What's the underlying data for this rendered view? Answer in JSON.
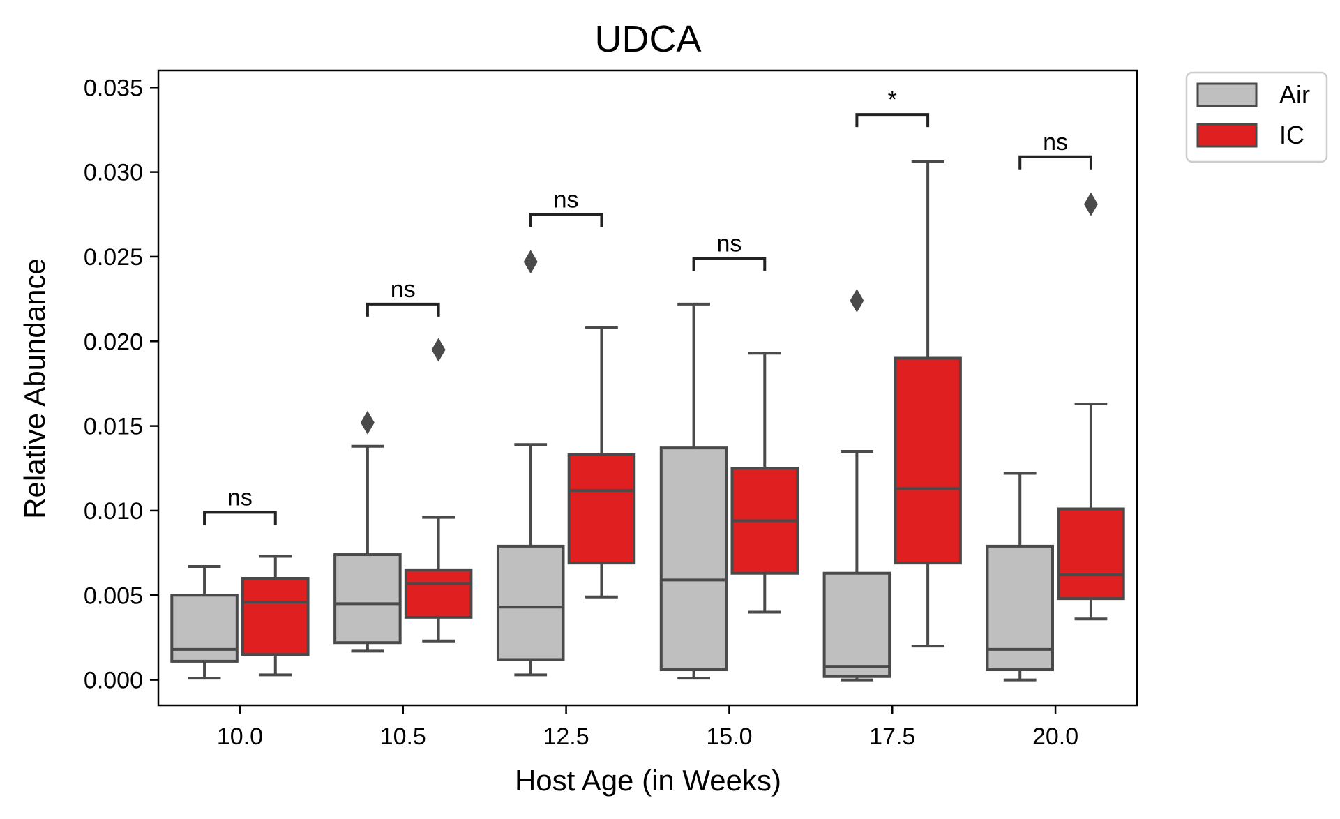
{
  "chart_data": {
    "type": "box",
    "title": "UDCA",
    "xlabel": "Host Age (in Weeks)",
    "ylabel": "Relative Abundance",
    "categories": [
      "10.0",
      "10.5",
      "12.5",
      "15.0",
      "17.5",
      "20.0"
    ],
    "ylim": [
      -0.0015,
      0.036
    ],
    "yticks": [
      0.0,
      0.005,
      0.01,
      0.015,
      0.02,
      0.025,
      0.03,
      0.035
    ],
    "ytick_labels": [
      "0.000",
      "0.005",
      "0.010",
      "0.015",
      "0.020",
      "0.025",
      "0.030",
      "0.035"
    ],
    "grid": false,
    "legend_position": "outside-top-right",
    "series": [
      {
        "name": "Air",
        "color": "#bfbfbf",
        "boxes": [
          {
            "whislo": 0.0001,
            "q1": 0.0011,
            "med": 0.0018,
            "q3": 0.005,
            "whishi": 0.0067,
            "fliers": []
          },
          {
            "whislo": 0.0017,
            "q1": 0.0022,
            "med": 0.0045,
            "q3": 0.0074,
            "whishi": 0.0138,
            "fliers": [
              0.0152
            ]
          },
          {
            "whislo": 0.0003,
            "q1": 0.0012,
            "med": 0.0043,
            "q3": 0.0079,
            "whishi": 0.0139,
            "fliers": [
              0.0247
            ]
          },
          {
            "whislo": 0.0001,
            "q1": 0.0006,
            "med": 0.0059,
            "q3": 0.0137,
            "whishi": 0.0222,
            "fliers": []
          },
          {
            "whislo": 0.0,
            "q1": 0.0002,
            "med": 0.0008,
            "q3": 0.0063,
            "whishi": 0.0135,
            "fliers": [
              0.0224
            ]
          },
          {
            "whislo": 0.0,
            "q1": 0.0006,
            "med": 0.0018,
            "q3": 0.0079,
            "whishi": 0.0122,
            "fliers": []
          }
        ]
      },
      {
        "name": "IC",
        "color": "#e02020",
        "boxes": [
          {
            "whislo": 0.0003,
            "q1": 0.0015,
            "med": 0.0046,
            "q3": 0.006,
            "whishi": 0.0073,
            "fliers": []
          },
          {
            "whislo": 0.0023,
            "q1": 0.0037,
            "med": 0.0057,
            "q3": 0.0065,
            "whishi": 0.0096,
            "fliers": [
              0.0195
            ]
          },
          {
            "whislo": 0.0049,
            "q1": 0.0069,
            "med": 0.0112,
            "q3": 0.0133,
            "whishi": 0.0208,
            "fliers": []
          },
          {
            "whislo": 0.004,
            "q1": 0.0063,
            "med": 0.0094,
            "q3": 0.0125,
            "whishi": 0.0193,
            "fliers": []
          },
          {
            "whislo": 0.002,
            "q1": 0.0069,
            "med": 0.0113,
            "q3": 0.019,
            "whishi": 0.0306,
            "fliers": []
          },
          {
            "whislo": 0.0036,
            "q1": 0.0048,
            "med": 0.0062,
            "q3": 0.0101,
            "whishi": 0.0163,
            "fliers": [
              0.0281
            ]
          }
        ]
      }
    ],
    "annotations": [
      {
        "category": "10.0",
        "text": "ns",
        "y": 0.0099
      },
      {
        "category": "10.5",
        "text": "ns",
        "y": 0.0222
      },
      {
        "category": "12.5",
        "text": "ns",
        "y": 0.0275
      },
      {
        "category": "15.0",
        "text": "ns",
        "y": 0.0249
      },
      {
        "category": "17.5",
        "text": "*",
        "y": 0.0334
      },
      {
        "category": "20.0",
        "text": "ns",
        "y": 0.0309
      }
    ]
  }
}
